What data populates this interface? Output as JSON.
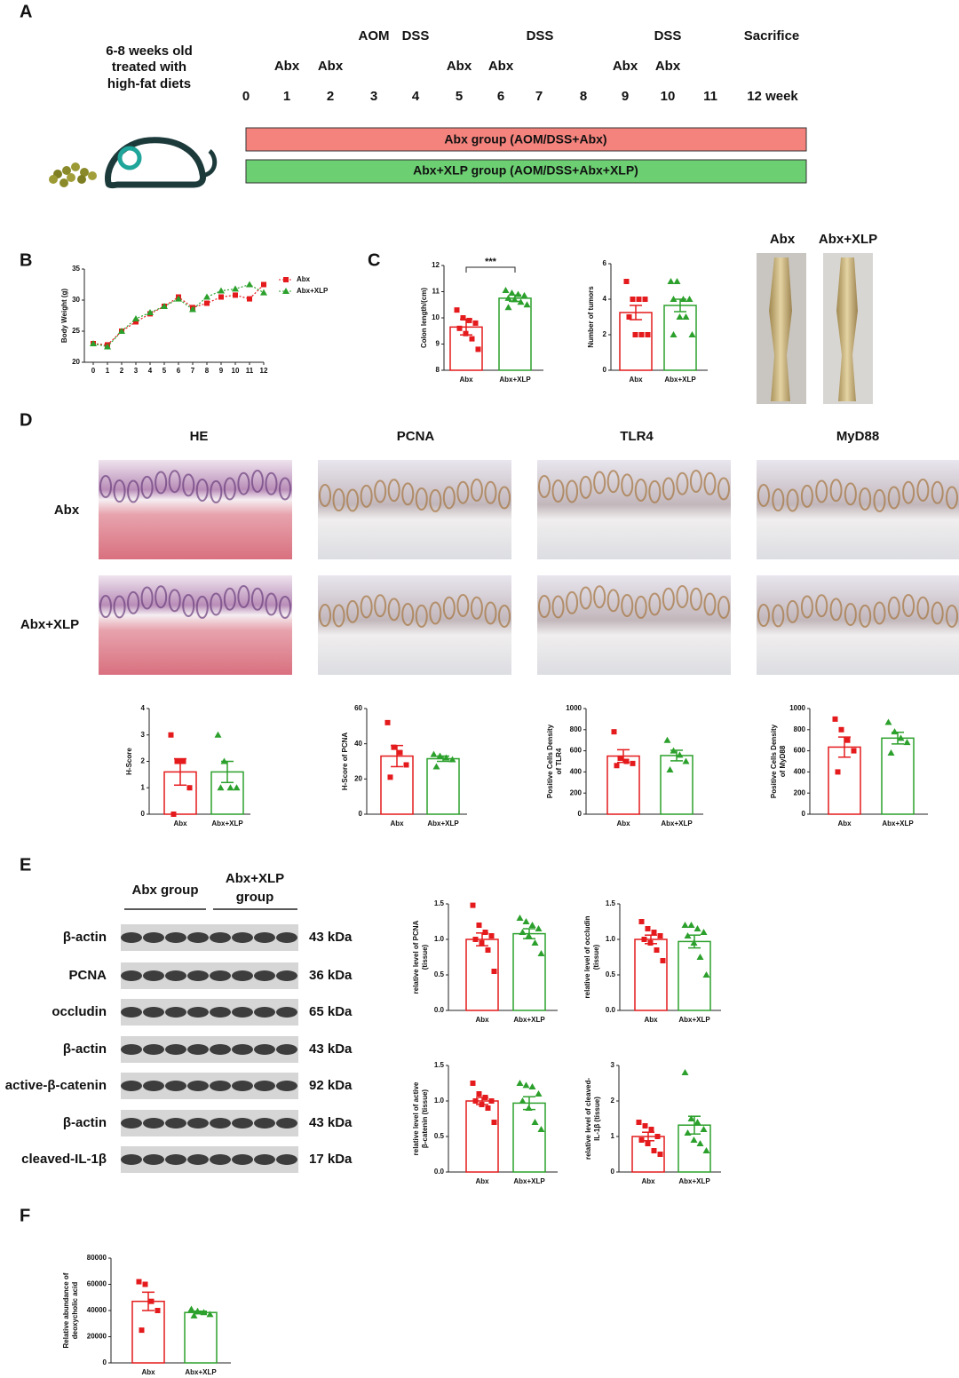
{
  "panels": [
    "A",
    "B",
    "C",
    "D",
    "E",
    "F"
  ],
  "timeline": {
    "subject": [
      "6-8 weeks old",
      "treated with",
      "high-fat diets"
    ],
    "weeks": [
      "0",
      "1",
      "2",
      "3",
      "4",
      "5",
      "6",
      "7",
      "8",
      "9",
      "10",
      "11",
      "12 week"
    ],
    "top_labels": [
      "AOM",
      "DSS",
      "DSS",
      "DSS",
      "Sacrifice"
    ],
    "abx_labels": [
      "Abx",
      "Abx",
      "Abx",
      "Abx",
      "Abx",
      "Abx"
    ],
    "groups": [
      "Abx group (AOM/DSS+Abx)",
      "Abx+XLP group (AOM/DSS+Abx+XLP)"
    ]
  },
  "colon_photos": [
    "Abx",
    "Abx+XLP"
  ],
  "histology": {
    "stains": [
      "HE",
      "PCNA",
      "TLR4",
      "MyD88"
    ],
    "groups": [
      "Abx",
      "Abx+XLP"
    ]
  },
  "western_blot": {
    "group_labels": [
      [
        "Abx group"
      ],
      [
        "Abx+XLP",
        "group"
      ]
    ],
    "rows": [
      {
        "label": "β-actin",
        "size": "43 kDa"
      },
      {
        "label": "PCNA",
        "size": "36 kDa"
      },
      {
        "label": "occludin",
        "size": "65 kDa"
      },
      {
        "label": "β-actin",
        "size": "43 kDa"
      },
      {
        "label": "active-β-catenin",
        "size": "92 kDa"
      },
      {
        "label": "β-actin",
        "size": "43 kDa"
      },
      {
        "label": "cleaved-IL-1β",
        "size": "17 kDa"
      }
    ]
  },
  "chart_data": [
    {
      "type": "line",
      "ylabel": [
        "Body Weight (g)"
      ],
      "x": [
        0,
        1,
        2,
        3,
        4,
        5,
        6,
        7,
        8,
        9,
        10,
        11,
        12
      ],
      "xlim": [
        0,
        12
      ],
      "xticks": [
        0,
        1,
        2,
        3,
        4,
        5,
        6,
        7,
        8,
        9,
        10,
        11,
        12
      ],
      "ylim": [
        20,
        35
      ],
      "yticks": [
        20,
        25,
        30,
        35
      ],
      "series": [
        {
          "name": "Abx",
          "color": "#e41a1c",
          "marker": "square",
          "values": [
            23,
            22.8,
            25,
            26.5,
            27.8,
            29,
            30.5,
            28.8,
            29.5,
            30.5,
            30.8,
            30.2,
            32.5
          ]
        },
        {
          "name": "Abx+XLP",
          "color": "#2ca02c",
          "marker": "triangle",
          "values": [
            23,
            22.5,
            25,
            27,
            28,
            29,
            30.2,
            28.5,
            30.5,
            31.5,
            31.8,
            32.5,
            31.2
          ]
        }
      ]
    },
    {
      "type": "bar",
      "ylabel": [
        "Colon length/(cm)"
      ],
      "annotation": "***",
      "categories": [
        "Abx",
        "Abx+XLP"
      ],
      "colors": [
        "#e41a1c",
        "#2ca02c"
      ],
      "markers": [
        "square",
        "triangle"
      ],
      "values": [
        9.65,
        10.75
      ],
      "errors": [
        0.3,
        0.12
      ],
      "points": [
        [
          10.3,
          10.0,
          9.9,
          9.8,
          9.6,
          9.4,
          9.2,
          8.8
        ],
        [
          11.05,
          10.95,
          10.9,
          10.85,
          10.75,
          10.7,
          10.6,
          10.5,
          10.4
        ]
      ],
      "ylim": [
        8,
        12
      ],
      "yticks": [
        8,
        9,
        10,
        11,
        12
      ]
    },
    {
      "type": "bar",
      "ylabel": [
        "Number of tumors"
      ],
      "categories": [
        "Abx",
        "Abx+XLP"
      ],
      "colors": [
        "#e41a1c",
        "#2ca02c"
      ],
      "markers": [
        "square",
        "triangle"
      ],
      "values": [
        3.25,
        3.65
      ],
      "errors": [
        0.4,
        0.35
      ],
      "points": [
        [
          5,
          4,
          4,
          4,
          3,
          2,
          2,
          2
        ],
        [
          5,
          5,
          4,
          4,
          4,
          3,
          3,
          2,
          2
        ]
      ],
      "ylim": [
        0,
        6
      ],
      "yticks": [
        0,
        2,
        4,
        6
      ]
    },
    {
      "type": "bar",
      "ylabel": [
        "H-Score"
      ],
      "categories": [
        "Abx",
        "Abx+XLP"
      ],
      "colors": [
        "#e41a1c",
        "#2ca02c"
      ],
      "markers": [
        "square",
        "triangle"
      ],
      "values": [
        1.6,
        1.6
      ],
      "errors": [
        0.5,
        0.4
      ],
      "points": [
        [
          3,
          2,
          2,
          1,
          0
        ],
        [
          3,
          2,
          1,
          1,
          1
        ]
      ],
      "ylim": [
        0,
        4
      ],
      "yticks": [
        0,
        1,
        2,
        3,
        4
      ]
    },
    {
      "type": "bar",
      "ylabel": [
        "H-Score of PCNA"
      ],
      "categories": [
        "Abx",
        "Abx+XLP"
      ],
      "colors": [
        "#e41a1c",
        "#2ca02c"
      ],
      "markers": [
        "square",
        "triangle"
      ],
      "values": [
        33,
        31.5
      ],
      "errors": [
        6,
        1.5
      ],
      "points": [
        [
          52,
          38,
          35,
          28,
          21
        ],
        [
          34,
          33,
          32,
          31,
          27
        ]
      ],
      "ylim": [
        0,
        60
      ],
      "yticks": [
        0,
        20,
        40,
        60
      ]
    },
    {
      "type": "bar",
      "ylabel": [
        "Positive Cells Density",
        "of TLR4"
      ],
      "categories": [
        "Abx",
        "Abx+XLP"
      ],
      "colors": [
        "#e41a1c",
        "#2ca02c"
      ],
      "markers": [
        "square",
        "triangle"
      ],
      "values": [
        550,
        555
      ],
      "errors": [
        60,
        50
      ],
      "points": [
        [
          780,
          530,
          500,
          480,
          460
        ],
        [
          700,
          600,
          560,
          500,
          420
        ]
      ],
      "ylim": [
        0,
        1000
      ],
      "yticks": [
        0,
        200,
        400,
        600,
        800,
        1000
      ]
    },
    {
      "type": "bar",
      "ylabel": [
        "Positive Cells Density",
        "of MyD88"
      ],
      "categories": [
        "Abx",
        "Abx+XLP"
      ],
      "colors": [
        "#e41a1c",
        "#2ca02c"
      ],
      "markers": [
        "square",
        "triangle"
      ],
      "values": [
        635,
        720
      ],
      "errors": [
        95,
        55
      ],
      "points": [
        [
          900,
          800,
          700,
          600,
          400
        ],
        [
          870,
          780,
          720,
          680,
          580
        ]
      ],
      "ylim": [
        0,
        1000
      ],
      "yticks": [
        0,
        200,
        400,
        600,
        800,
        1000
      ]
    },
    {
      "type": "bar",
      "ylabel": [
        "relative level of PCNA",
        "(tissue)"
      ],
      "categories": [
        "Abx",
        "Abx+XLP"
      ],
      "colors": [
        "#e41a1c",
        "#2ca02c"
      ],
      "markers": [
        "square",
        "triangle"
      ],
      "values": [
        1.0,
        1.08
      ],
      "errors": [
        0.09,
        0.07
      ],
      "points": [
        [
          1.48,
          1.2,
          1.1,
          1.05,
          1.0,
          0.95,
          0.85,
          0.55
        ],
        [
          1.3,
          1.25,
          1.2,
          1.15,
          1.1,
          1.05,
          0.95,
          0.8
        ]
      ],
      "ylim": [
        0,
        1.5
      ],
      "yticks": [
        {
          "value": 0,
          "label": "0.0"
        },
        0.5,
        {
          "value": 1,
          "label": "1.0"
        },
        1.5
      ]
    },
    {
      "type": "bar",
      "ylabel": [
        "relative level of occludin",
        "(tissue)"
      ],
      "categories": [
        "Abx",
        "Abx+XLP"
      ],
      "colors": [
        "#e41a1c",
        "#2ca02c"
      ],
      "markers": [
        "square",
        "triangle"
      ],
      "values": [
        1.0,
        0.97
      ],
      "errors": [
        0.06,
        0.09
      ],
      "points": [
        [
          1.25,
          1.15,
          1.1,
          1.05,
          1.0,
          0.95,
          0.85,
          0.7
        ],
        [
          1.2,
          1.2,
          1.15,
          1.1,
          1.05,
          0.95,
          0.75,
          0.5
        ]
      ],
      "ylim": [
        0,
        1.5
      ],
      "yticks": [
        {
          "value": 0,
          "label": "0.0"
        },
        0.5,
        {
          "value": 1,
          "label": "1.0"
        },
        1.5
      ]
    },
    {
      "type": "bar",
      "ylabel": [
        "relative level of active",
        "β-catenin (tissue)"
      ],
      "categories": [
        "Abx",
        "Abx+XLP"
      ],
      "colors": [
        "#e41a1c",
        "#2ca02c"
      ],
      "markers": [
        "square",
        "triangle"
      ],
      "values": [
        1.0,
        0.97
      ],
      "errors": [
        0.05,
        0.09
      ],
      "points": [
        [
          1.25,
          1.1,
          1.05,
          1.0,
          1.0,
          0.95,
          0.9,
          0.7
        ],
        [
          1.25,
          1.22,
          1.2,
          1.1,
          1.0,
          0.9,
          0.7,
          0.6
        ]
      ],
      "ylim": [
        0,
        1.5
      ],
      "yticks": [
        {
          "value": 0,
          "label": "0.0"
        },
        0.5,
        {
          "value": 1,
          "label": "1.0"
        },
        1.5
      ]
    },
    {
      "type": "bar",
      "ylabel": [
        "relative level of cleaved-",
        "IL-1β (tissue)"
      ],
      "categories": [
        "Abx",
        "Abx+XLP"
      ],
      "colors": [
        "#e41a1c",
        "#2ca02c"
      ],
      "markers": [
        "square",
        "triangle"
      ],
      "values": [
        1.0,
        1.32
      ],
      "errors": [
        0.12,
        0.25
      ],
      "points": [
        [
          1.4,
          1.3,
          1.2,
          1.0,
          0.9,
          0.8,
          0.6,
          0.5
        ],
        [
          2.8,
          1.5,
          1.4,
          1.2,
          1.1,
          0.9,
          0.8,
          0.6
        ]
      ],
      "ylim": [
        0,
        3
      ],
      "yticks": [
        0,
        1,
        2,
        3
      ]
    },
    {
      "type": "bar",
      "ylabel": [
        "Relative abundance of",
        "deoxycholic acid"
      ],
      "categories": [
        "Abx",
        "Abx+XLP"
      ],
      "colors": [
        "#e41a1c",
        "#2ca02c"
      ],
      "markers": [
        "square",
        "triangle"
      ],
      "values": [
        47000,
        38500
      ],
      "errors": [
        7000,
        1000
      ],
      "points": [
        [
          62000,
          60000,
          47000,
          40000,
          25000
        ],
        [
          41000,
          39500,
          38500,
          37000,
          36000
        ]
      ],
      "ylim": [
        0,
        80000
      ],
      "yticks": [
        0,
        20000,
        40000,
        60000,
        80000
      ]
    }
  ]
}
